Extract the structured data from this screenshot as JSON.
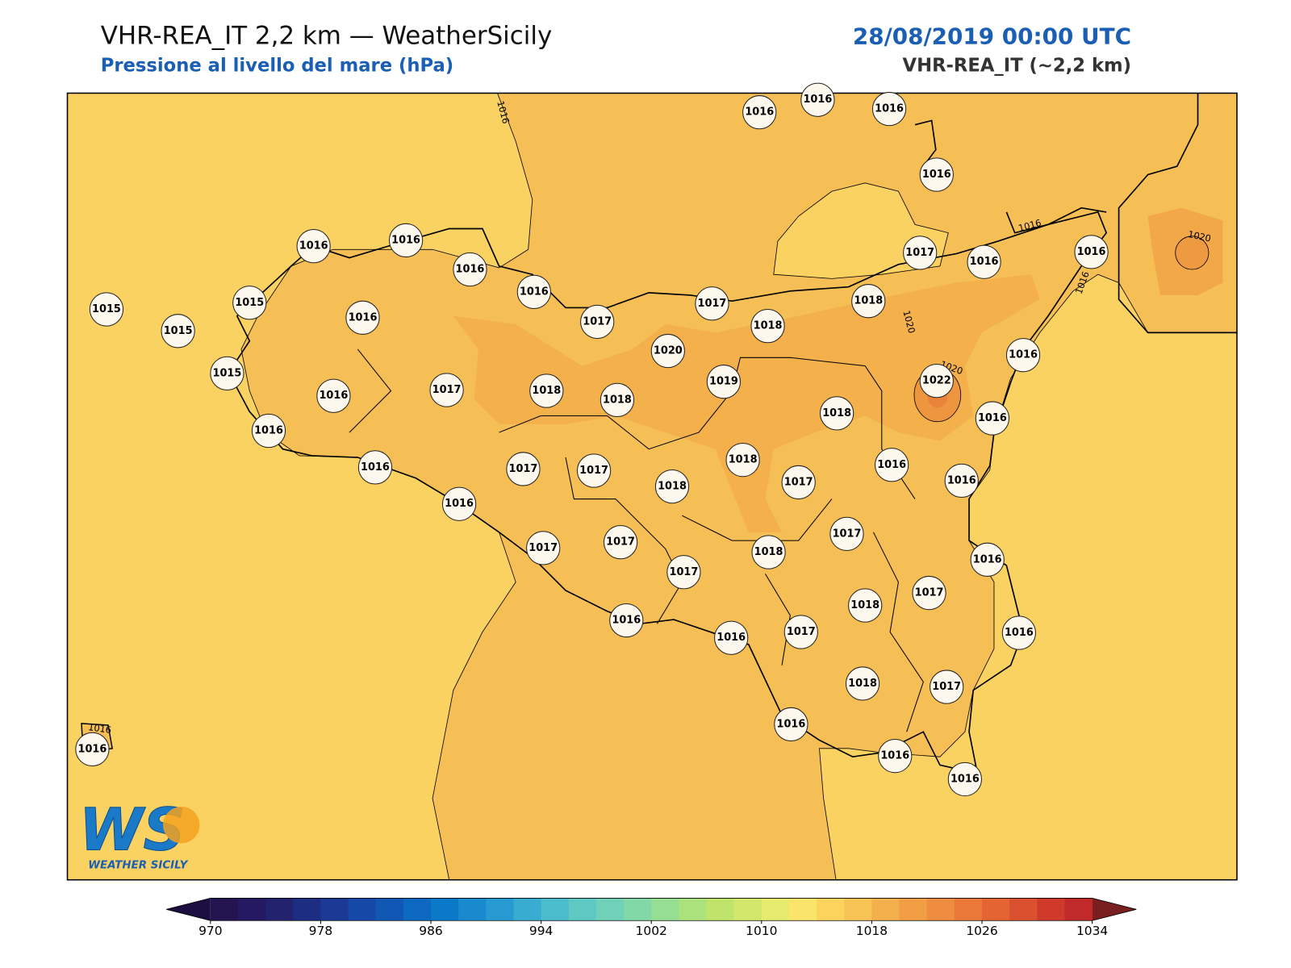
{
  "header": {
    "title": "VHR-REA_IT 2,2 km — WeatherSicily",
    "subtitle": "Pressione al livello del mare (hPa)",
    "date": "28/08/2019 00:00 UTC",
    "model": "VHR-REA_IT (~2,2 km)"
  },
  "stations": [
    1016,
    1016,
    1016,
    1016,
    1016,
    1016,
    1016,
    1016,
    1015,
    1015,
    1015,
    1016,
    1017,
    1017,
    1017,
    1016,
    1016,
    1018,
    1018,
    1020,
    1015,
    1016,
    1017,
    1018,
    1018,
    1019,
    1022,
    1016,
    1016,
    1018,
    1016,
    1016,
    1017,
    1017,
    1018,
    1018,
    1017,
    1016,
    1016,
    1016,
    1017,
    1017,
    1017,
    1018,
    1016,
    1017,
    1017,
    1018,
    1016,
    1016,
    1017,
    1016,
    1018,
    1017,
    1016,
    1016,
    1016,
    1016
  ],
  "contour_labels": [
    1016,
    1016,
    1020,
    1016,
    1020,
    1020,
    1016
  ],
  "colorbar": {
    "range": [
      970,
      1034
    ],
    "ticks": [
      970,
      978,
      986,
      994,
      1002,
      1010,
      1018,
      1026,
      1034
    ],
    "colors": [
      "#241550",
      "#251a62",
      "#22226f",
      "#1d2d82",
      "#1a3a96",
      "#1649a7",
      "#1158b4",
      "#0c68c0",
      "#0a79c8",
      "#188acd",
      "#279bd1",
      "#38acd1",
      "#4bbccc",
      "#5ec8c3",
      "#6fd1b7",
      "#82d8a6",
      "#96de92",
      "#abe27c",
      "#c0e46b",
      "#d3e86a",
      "#e6eb6e",
      "#fae46a",
      "#fbd35d",
      "#f8c355",
      "#f4b04c",
      "#f19e45",
      "#ee8c40",
      "#ea7939",
      "#e46533",
      "#db502e",
      "#cf3a2b",
      "#c12a2a"
    ],
    "under_color": "#1c0e40",
    "over_color": "#7a1f1f"
  },
  "logo": {
    "mark": "WS",
    "text": "WEATHER SICILY"
  }
}
